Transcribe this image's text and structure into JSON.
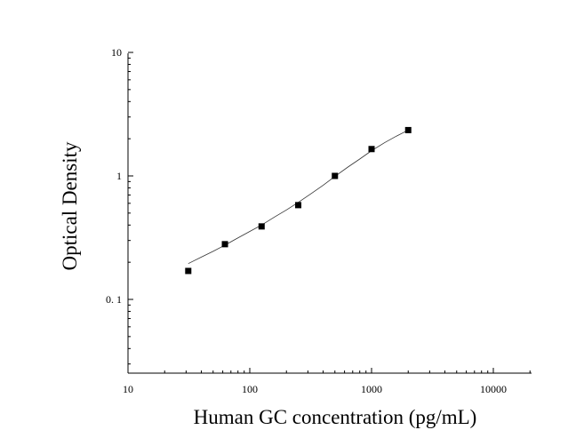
{
  "chart_data": {
    "type": "scatter",
    "title": "",
    "xlabel": "Human GC concentration (pg/mL)",
    "ylabel": "Optical Density",
    "x_scale": "log",
    "y_scale": "log",
    "xlim": [
      10,
      20000
    ],
    "ylim": [
      0.025,
      10
    ],
    "x_ticks": [
      {
        "value": 10,
        "label": "10"
      },
      {
        "value": 100,
        "label": "100"
      },
      {
        "value": 1000,
        "label": "1000"
      },
      {
        "value": 10000,
        "label": "10000"
      }
    ],
    "y_ticks": [
      {
        "value": 0.1,
        "label": "0. 1"
      },
      {
        "value": 1,
        "label": "1"
      },
      {
        "value": 10,
        "label": "10"
      }
    ],
    "grid": false,
    "legend": "none",
    "series": [
      {
        "points": [
          {
            "x": 31.25,
            "y": 0.17
          },
          {
            "x": 62.5,
            "y": 0.28
          },
          {
            "x": 125,
            "y": 0.39
          },
          {
            "x": 250,
            "y": 0.58
          },
          {
            "x": 500,
            "y": 1.0
          },
          {
            "x": 1000,
            "y": 1.65
          },
          {
            "x": 2000,
            "y": 2.35
          }
        ],
        "marker": "square",
        "color": "#000000"
      }
    ],
    "fit_curve": {
      "x": [
        31.25,
        40,
        50,
        62.5,
        80,
        100,
        125,
        160,
        200,
        250,
        320,
        400,
        500,
        640,
        800,
        1000,
        1280,
        1600,
        2000
      ],
      "y": [
        0.195,
        0.22,
        0.245,
        0.275,
        0.315,
        0.355,
        0.4,
        0.465,
        0.53,
        0.61,
        0.72,
        0.84,
        0.99,
        1.18,
        1.37,
        1.6,
        1.86,
        2.1,
        2.35
      ],
      "color": "#333333"
    }
  }
}
